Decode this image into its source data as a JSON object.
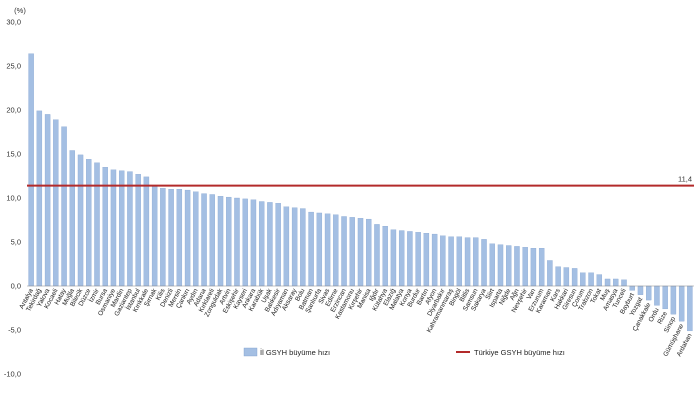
{
  "chart_data": {
    "type": "bar",
    "unit_label": "(%)",
    "ylim": [
      -10,
      30
    ],
    "yticks": [
      "-10,0",
      "-5,0",
      "0,0",
      "5,0",
      "10,0",
      "15,0",
      "20,0",
      "25,0",
      "30,0"
    ],
    "grid": false,
    "legend_position": "bottom",
    "colors": {
      "bar": "#a4bfe3",
      "bar_stroke": "#7f9fcd",
      "reference": "#b32a2a",
      "axis": "#888888"
    },
    "categories": [
      "Antalya",
      "Tekirdağ",
      "Yalova",
      "Kocaeli",
      "Hatay",
      "Muğla",
      "Bilecik",
      "Düzce",
      "İzmir",
      "Bursa",
      "Osmaniye",
      "Mardin",
      "Gaziantep",
      "İstanbul",
      "Kırıkkale",
      "Şırnak",
      "Kilis",
      "Denizli",
      "Mersin",
      "Çankırı",
      "Aydın",
      "Adana",
      "Kırklareli",
      "Zonguldak",
      "Artvin",
      "Eskişehir",
      "Kayseri",
      "Ankara",
      "Karabük",
      "Uşak",
      "Balıkesir",
      "Adıyaman",
      "Aksaray",
      "Bolu",
      "Batman",
      "Şanlıurfa",
      "Sivas",
      "Edirne",
      "Erzincan",
      "Kastamonu",
      "Kırşehir",
      "Manisa",
      "Iğdır",
      "Kütahya",
      "Elazığ",
      "Malatya",
      "Konya",
      "Burdur",
      "Bartın",
      "Afyon",
      "Diyarbakır",
      "Kahramanmaraş",
      "Bingöl",
      "Bitlis",
      "Samsun",
      "Sakarya",
      "Siirt",
      "Isparta",
      "Niğde",
      "Ağrı",
      "Nevşehir",
      "Van",
      "Erzurum",
      "Karaman",
      "Kars",
      "Hakkari",
      "Giresun",
      "Çorum",
      "Trabzon",
      "Tokat",
      "Muş",
      "Amasya",
      "Tunceli",
      "Bayburt",
      "Yozgat",
      "Çanakkale",
      "Ordu",
      "Rize",
      "Sinop",
      "Gümüşhane",
      "Ardahan"
    ],
    "series": [
      {
        "name": "İl GSYH büyüme hızı",
        "values": [
          26.4,
          19.9,
          19.5,
          18.9,
          18.1,
          15.4,
          14.9,
          14.4,
          14.0,
          13.5,
          13.2,
          13.1,
          13.0,
          12.7,
          12.4,
          11.3,
          11.1,
          11.0,
          11.0,
          10.9,
          10.7,
          10.5,
          10.4,
          10.2,
          10.1,
          10.0,
          9.9,
          9.8,
          9.6,
          9.5,
          9.4,
          9.0,
          8.9,
          8.8,
          8.4,
          8.3,
          8.2,
          8.1,
          7.9,
          7.8,
          7.7,
          7.6,
          7.0,
          6.8,
          6.4,
          6.3,
          6.2,
          6.1,
          6.0,
          5.9,
          5.7,
          5.6,
          5.6,
          5.5,
          5.5,
          5.3,
          4.8,
          4.7,
          4.6,
          4.5,
          4.4,
          4.3,
          4.3,
          2.9,
          2.2,
          2.1,
          2.0,
          1.5,
          1.5,
          1.3,
          0.8,
          0.8,
          0.7,
          -0.5,
          -1.0,
          -1.6,
          -2.2,
          -2.6,
          -3.2,
          -4.0,
          -5.1
        ]
      }
    ],
    "reference_line": {
      "name": "Türkiye GSYH büyüme hızı",
      "value": 11.4,
      "label": "11,4"
    }
  }
}
